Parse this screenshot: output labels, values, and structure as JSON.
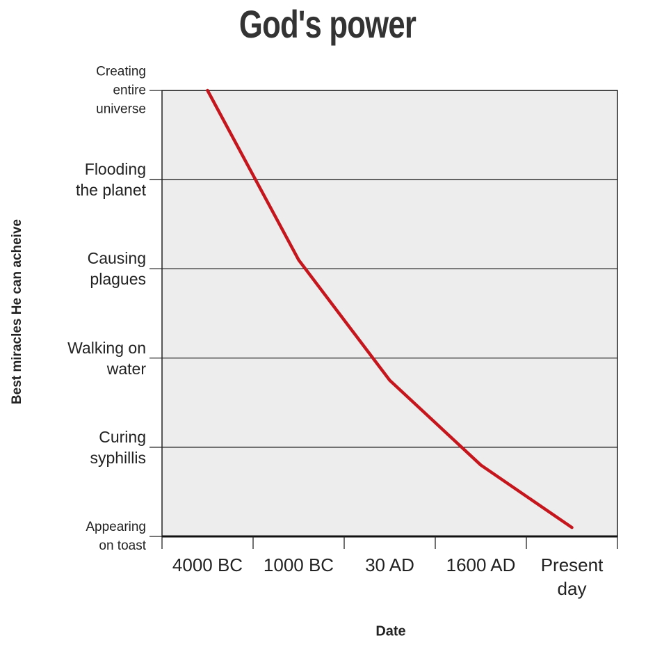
{
  "chart_data": {
    "type": "line",
    "title": "God's power",
    "x_label": "Date",
    "y_label": "Best miracles He can acheive",
    "categories": [
      "4000 BC",
      "1000 BC",
      "30 AD",
      "1600 AD",
      "Present day"
    ],
    "series": [
      {
        "name": "God's power",
        "color": "#c4161c",
        "values": [
          5,
          3.1,
          1.75,
          0.8,
          0.1
        ]
      }
    ],
    "ylim": [
      0,
      5
    ],
    "yticks": [
      {
        "value": 0,
        "label": "Appearing on toast"
      },
      {
        "value": 1,
        "label": "Curing syphillis"
      },
      {
        "value": 2,
        "label": "Walking on water"
      },
      {
        "value": 3,
        "label": "Causing plagues"
      },
      {
        "value": 4,
        "label": "Flooding the planet"
      },
      {
        "value": 5,
        "label": "Creating entire universe"
      }
    ],
    "grid": true
  }
}
